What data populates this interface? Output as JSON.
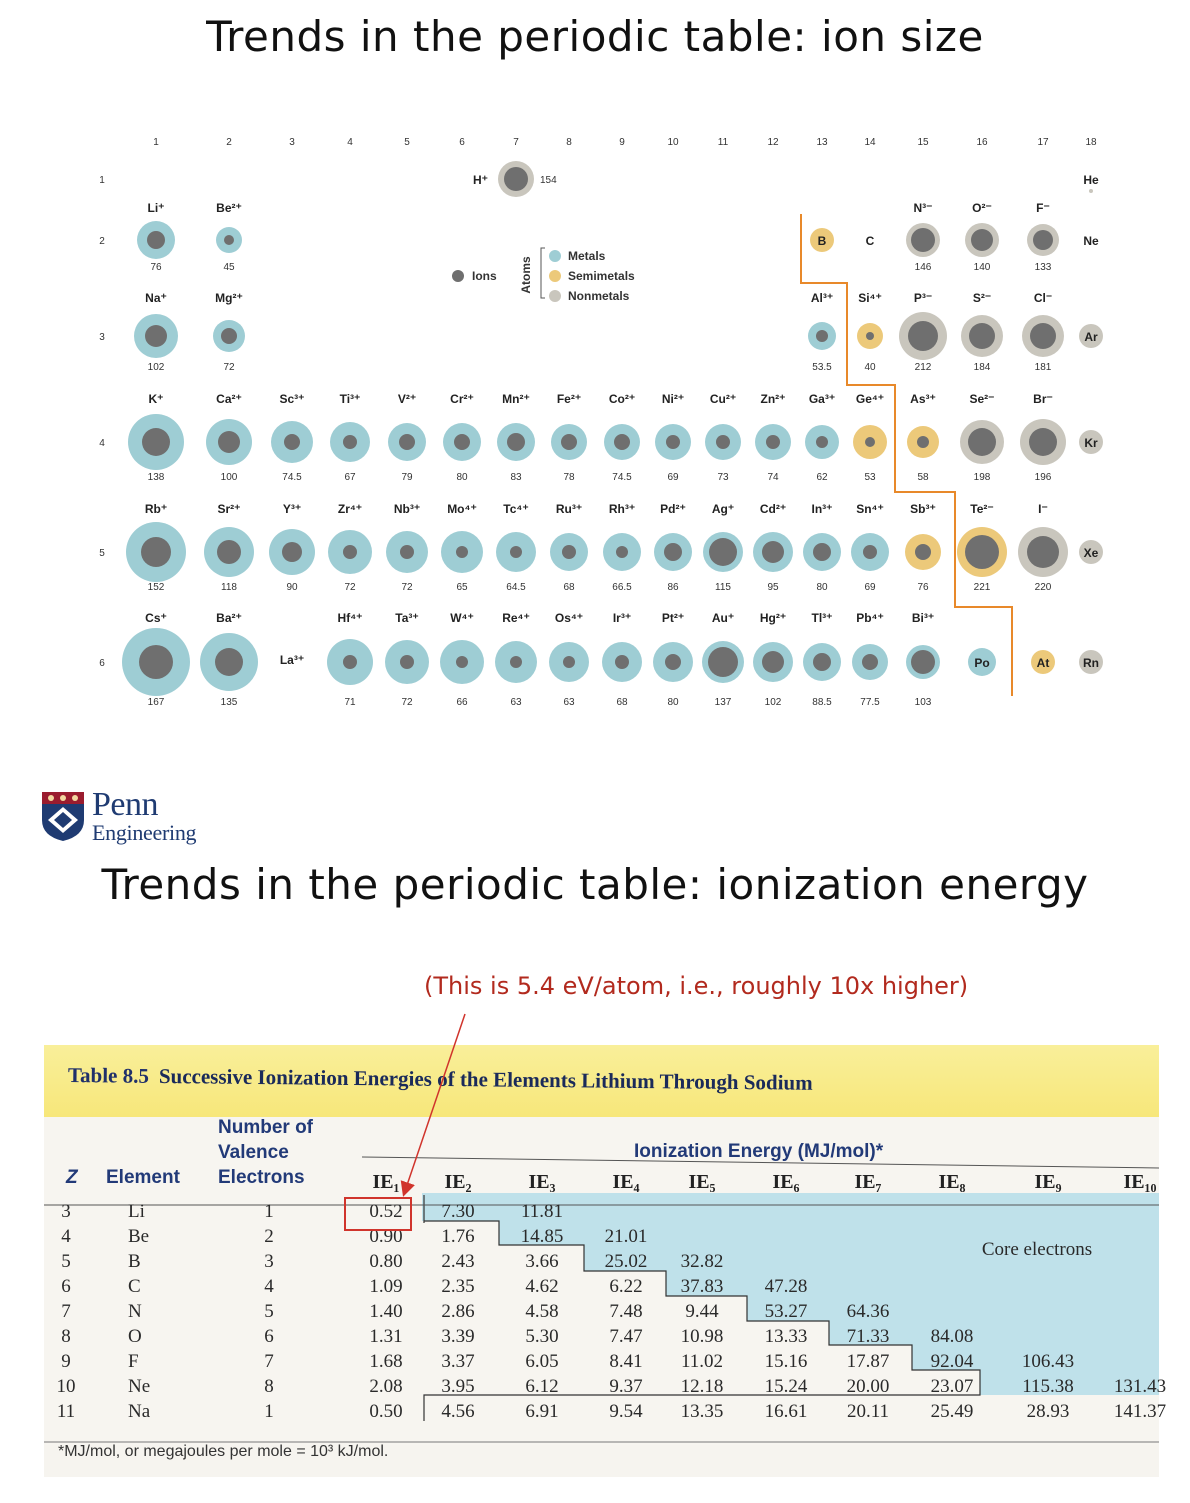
{
  "titles": {
    "ion_size": "Trends in the periodic table: ion size",
    "ionization": "Trends in the periodic table: ionization energy"
  },
  "periodic_table": {
    "groups": [
      "1",
      "2",
      "3",
      "4",
      "5",
      "6",
      "7",
      "8",
      "9",
      "10",
      "11",
      "12",
      "13",
      "14",
      "15",
      "16",
      "17",
      "18"
    ],
    "periods": [
      "1",
      "2",
      "3",
      "4",
      "5",
      "6"
    ],
    "legend": {
      "ions": "Ions",
      "atoms": "Atoms",
      "metals": "Metals",
      "semimetals": "Semimetals",
      "nonmetals": "Nonmetals"
    },
    "colors": {
      "metal": "#9ecdd4",
      "semimetal": "#ecc97a",
      "nonmetal": "#c9c6bd",
      "ion": "#6f6f6f",
      "boundary": "#e8892a"
    },
    "ions": [
      {
        "label": "H⁺",
        "value": "154",
        "group": 7,
        "period": 1,
        "type": "nonmetal",
        "r": 18,
        "ir": 12,
        "lpos": "left"
      },
      {
        "label": "Li⁺",
        "value": "76",
        "group": 1,
        "period": 2,
        "type": "metal",
        "r": 19,
        "ir": 9
      },
      {
        "label": "Be²⁺",
        "value": "45",
        "group": 2,
        "period": 2,
        "type": "metal",
        "r": 13,
        "ir": 5
      },
      {
        "label": "N³⁻",
        "value": "146",
        "group": 15,
        "period": 2,
        "type": "nonmetal",
        "r": 17,
        "ir": 12
      },
      {
        "label": "O²⁻",
        "value": "140",
        "group": 16,
        "period": 2,
        "type": "nonmetal",
        "r": 17,
        "ir": 11
      },
      {
        "label": "F⁻",
        "value": "133",
        "group": 17,
        "period": 2,
        "type": "nonmetal",
        "r": 16,
        "ir": 10
      },
      {
        "label": "Na⁺",
        "value": "102",
        "group": 1,
        "period": 3,
        "type": "metal",
        "r": 22,
        "ir": 11
      },
      {
        "label": "Mg²⁺",
        "value": "72",
        "group": 2,
        "period": 3,
        "type": "metal",
        "r": 16,
        "ir": 8
      },
      {
        "label": "Al³⁺",
        "value": "53.5",
        "group": 13,
        "period": 3,
        "type": "metal",
        "r": 14,
        "ir": 6
      },
      {
        "label": "Si⁴⁺",
        "value": "40",
        "group": 14,
        "period": 3,
        "type": "semimetal",
        "r": 13,
        "ir": 4
      },
      {
        "label": "P³⁻",
        "value": "212",
        "group": 15,
        "period": 3,
        "type": "nonmetal",
        "r": 24,
        "ir": 15
      },
      {
        "label": "S²⁻",
        "value": "184",
        "group": 16,
        "period": 3,
        "type": "nonmetal",
        "r": 21,
        "ir": 13
      },
      {
        "label": "Cl⁻",
        "value": "181",
        "group": 17,
        "period": 3,
        "type": "nonmetal",
        "r": 21,
        "ir": 13
      },
      {
        "label": "K⁺",
        "value": "138",
        "group": 1,
        "period": 4,
        "type": "metal",
        "r": 28,
        "ir": 14
      },
      {
        "label": "Ca²⁺",
        "value": "100",
        "group": 2,
        "period": 4,
        "type": "metal",
        "r": 23,
        "ir": 11
      },
      {
        "label": "Sc³⁺",
        "value": "74.5",
        "group": 3,
        "period": 4,
        "type": "metal",
        "r": 21,
        "ir": 8
      },
      {
        "label": "Ti³⁺",
        "value": "67",
        "group": 4,
        "period": 4,
        "type": "metal",
        "r": 20,
        "ir": 7
      },
      {
        "label": "V²⁺",
        "value": "79",
        "group": 5,
        "period": 4,
        "type": "metal",
        "r": 19,
        "ir": 8
      },
      {
        "label": "Cr²⁺",
        "value": "80",
        "group": 6,
        "period": 4,
        "type": "metal",
        "r": 19,
        "ir": 8
      },
      {
        "label": "Mn²⁺",
        "value": "83",
        "group": 7,
        "period": 4,
        "type": "metal",
        "r": 19,
        "ir": 9
      },
      {
        "label": "Fe²⁺",
        "value": "78",
        "group": 8,
        "period": 4,
        "type": "metal",
        "r": 18,
        "ir": 8
      },
      {
        "label": "Co²⁺",
        "value": "74.5",
        "group": 9,
        "period": 4,
        "type": "metal",
        "r": 18,
        "ir": 8
      },
      {
        "label": "Ni²⁺",
        "value": "69",
        "group": 10,
        "period": 4,
        "type": "metal",
        "r": 18,
        "ir": 7
      },
      {
        "label": "Cu²⁺",
        "value": "73",
        "group": 11,
        "period": 4,
        "type": "metal",
        "r": 18,
        "ir": 7
      },
      {
        "label": "Zn²⁺",
        "value": "74",
        "group": 12,
        "period": 4,
        "type": "metal",
        "r": 18,
        "ir": 7
      },
      {
        "label": "Ga³⁺",
        "value": "62",
        "group": 13,
        "period": 4,
        "type": "metal",
        "r": 17,
        "ir": 6
      },
      {
        "label": "Ge⁴⁺",
        "value": "53",
        "group": 14,
        "period": 4,
        "type": "semimetal",
        "r": 17,
        "ir": 5
      },
      {
        "label": "As³⁺",
        "value": "58",
        "group": 15,
        "period": 4,
        "type": "semimetal",
        "r": 16,
        "ir": 6
      },
      {
        "label": "Se²⁻",
        "value": "198",
        "group": 16,
        "period": 4,
        "type": "nonmetal",
        "r": 22,
        "ir": 14
      },
      {
        "label": "Br⁻",
        "value": "196",
        "group": 17,
        "period": 4,
        "type": "nonmetal",
        "r": 23,
        "ir": 14
      },
      {
        "label": "Rb⁺",
        "value": "152",
        "group": 1,
        "period": 5,
        "type": "metal",
        "r": 30,
        "ir": 15
      },
      {
        "label": "Sr²⁺",
        "value": "118",
        "group": 2,
        "period": 5,
        "type": "metal",
        "r": 25,
        "ir": 12
      },
      {
        "label": "Y³⁺",
        "value": "90",
        "group": 3,
        "period": 5,
        "type": "metal",
        "r": 23,
        "ir": 10
      },
      {
        "label": "Zr⁴⁺",
        "value": "72",
        "group": 4,
        "period": 5,
        "type": "metal",
        "r": 22,
        "ir": 7
      },
      {
        "label": "Nb³⁺",
        "value": "72",
        "group": 5,
        "period": 5,
        "type": "metal",
        "r": 21,
        "ir": 7
      },
      {
        "label": "Mo⁴⁺",
        "value": "65",
        "group": 6,
        "period": 5,
        "type": "metal",
        "r": 21,
        "ir": 6
      },
      {
        "label": "Tc⁴⁺",
        "value": "64.5",
        "group": 7,
        "period": 5,
        "type": "metal",
        "r": 20,
        "ir": 6
      },
      {
        "label": "Ru³⁺",
        "value": "68",
        "group": 8,
        "period": 5,
        "type": "metal",
        "r": 19,
        "ir": 7
      },
      {
        "label": "Rh³⁺",
        "value": "66.5",
        "group": 9,
        "period": 5,
        "type": "metal",
        "r": 19,
        "ir": 6
      },
      {
        "label": "Pd²⁺",
        "value": "86",
        "group": 10,
        "period": 5,
        "type": "metal",
        "r": 19,
        "ir": 9
      },
      {
        "label": "Ag⁺",
        "value": "115",
        "group": 11,
        "period": 5,
        "type": "metal",
        "r": 20,
        "ir": 14
      },
      {
        "label": "Cd²⁺",
        "value": "95",
        "group": 12,
        "period": 5,
        "type": "metal",
        "r": 20,
        "ir": 11
      },
      {
        "label": "In³⁺",
        "value": "80",
        "group": 13,
        "period": 5,
        "type": "metal",
        "r": 19,
        "ir": 9
      },
      {
        "label": "Sn⁴⁺",
        "value": "69",
        "group": 14,
        "period": 5,
        "type": "metal",
        "r": 19,
        "ir": 7
      },
      {
        "label": "Sb³⁺",
        "value": "76",
        "group": 15,
        "period": 5,
        "type": "semimetal",
        "r": 18,
        "ir": 8
      },
      {
        "label": "Te²⁻",
        "value": "221",
        "group": 16,
        "period": 5,
        "type": "semimetal",
        "r": 25,
        "ir": 17
      },
      {
        "label": "I⁻",
        "value": "220",
        "group": 17,
        "period": 5,
        "type": "nonmetal",
        "r": 25,
        "ir": 16
      },
      {
        "label": "Cs⁺",
        "value": "167",
        "group": 1,
        "period": 6,
        "type": "metal",
        "r": 34,
        "ir": 17
      },
      {
        "label": "Ba²⁺",
        "value": "135",
        "group": 2,
        "period": 6,
        "type": "metal",
        "r": 29,
        "ir": 14
      },
      {
        "label": "Hf⁴⁺",
        "value": "71",
        "group": 4,
        "period": 6,
        "type": "metal",
        "r": 23,
        "ir": 7
      },
      {
        "label": "Ta³⁺",
        "value": "72",
        "group": 5,
        "period": 6,
        "type": "metal",
        "r": 22,
        "ir": 7
      },
      {
        "label": "W⁴⁺",
        "value": "66",
        "group": 6,
        "period": 6,
        "type": "metal",
        "r": 22,
        "ir": 6
      },
      {
        "label": "Re⁴⁺",
        "value": "63",
        "group": 7,
        "period": 6,
        "type": "metal",
        "r": 21,
        "ir": 6
      },
      {
        "label": "Os⁴⁺",
        "value": "63",
        "group": 8,
        "period": 6,
        "type": "metal",
        "r": 20,
        "ir": 6
      },
      {
        "label": "Ir³⁺",
        "value": "68",
        "group": 9,
        "period": 6,
        "type": "metal",
        "r": 20,
        "ir": 7
      },
      {
        "label": "Pt²⁺",
        "value": "80",
        "group": 10,
        "period": 6,
        "type": "metal",
        "r": 20,
        "ir": 8
      },
      {
        "label": "Au⁺",
        "value": "137",
        "group": 11,
        "period": 6,
        "type": "metal",
        "r": 21,
        "ir": 15
      },
      {
        "label": "Hg²⁺",
        "value": "102",
        "group": 12,
        "period": 6,
        "type": "metal",
        "r": 20,
        "ir": 11
      },
      {
        "label": "Tl³⁺",
        "value": "88.5",
        "group": 13,
        "period": 6,
        "type": "metal",
        "r": 19,
        "ir": 9
      },
      {
        "label": "Pb⁴⁺",
        "value": "77.5",
        "group": 14,
        "period": 6,
        "type": "metal",
        "r": 18,
        "ir": 8
      },
      {
        "label": "Bi³⁺",
        "value": "103",
        "group": 15,
        "period": 6,
        "type": "metal",
        "r": 17,
        "ir": 12
      }
    ],
    "plain_cells": [
      {
        "label": "He",
        "group": 18,
        "period": 1,
        "type": "text"
      },
      {
        "label": "B",
        "group": 13,
        "period": 2,
        "type": "semimetal"
      },
      {
        "label": "C",
        "group": 14,
        "period": 2,
        "type": "text"
      },
      {
        "label": "Ne",
        "group": 18,
        "period": 2,
        "type": "text"
      },
      {
        "label": "Ar",
        "group": 18,
        "period": 3,
        "type": "nonmetal"
      },
      {
        "label": "Kr",
        "group": 18,
        "period": 4,
        "type": "nonmetal"
      },
      {
        "label": "Xe",
        "group": 18,
        "period": 5,
        "type": "nonmetal"
      },
      {
        "label": "Po",
        "group": 16,
        "period": 6,
        "type": "metal"
      },
      {
        "label": "At",
        "group": 17,
        "period": 6,
        "type": "semimetal"
      },
      {
        "label": "Rn",
        "group": 18,
        "period": 6,
        "type": "nonmetal"
      },
      {
        "label": "La³⁺",
        "group": 3,
        "period": 6,
        "type": "text"
      }
    ]
  },
  "logo": {
    "name": "Penn",
    "subtitle": "Engineering"
  },
  "annotation": "(This is 5.4 eV/atom, i.e., roughly 10x higher)",
  "table": {
    "number": "Table 8.5",
    "title": "Successive Ionization Energies of the Elements Lithium Through Sodium",
    "col_z": "Z",
    "col_element": "Element",
    "col_valence": [
      "Number of",
      "Valence",
      "Electrons"
    ],
    "ie_header": "Ionization Energy (MJ/mol)*",
    "ie_columns": [
      "IE₁",
      "IE₂",
      "IE₃",
      "IE₄",
      "IE₅",
      "IE₆",
      "IE₇",
      "IE₈",
      "IE₉",
      "IE₁₀"
    ],
    "core_label": "Core electrons",
    "rows": [
      {
        "z": "3",
        "el": "Li",
        "val": "1",
        "ie": [
          "0.52",
          "7.30",
          "11.81"
        ]
      },
      {
        "z": "4",
        "el": "Be",
        "val": "2",
        "ie": [
          "0.90",
          "1.76",
          "14.85",
          "21.01"
        ]
      },
      {
        "z": "5",
        "el": "B",
        "val": "3",
        "ie": [
          "0.80",
          "2.43",
          "3.66",
          "25.02",
          "32.82"
        ]
      },
      {
        "z": "6",
        "el": "C",
        "val": "4",
        "ie": [
          "1.09",
          "2.35",
          "4.62",
          "6.22",
          "37.83",
          "47.28"
        ]
      },
      {
        "z": "7",
        "el": "N",
        "val": "5",
        "ie": [
          "1.40",
          "2.86",
          "4.58",
          "7.48",
          "9.44",
          "53.27",
          "64.36"
        ]
      },
      {
        "z": "8",
        "el": "O",
        "val": "6",
        "ie": [
          "1.31",
          "3.39",
          "5.30",
          "7.47",
          "10.98",
          "13.33",
          "71.33",
          "84.08"
        ]
      },
      {
        "z": "9",
        "el": "F",
        "val": "7",
        "ie": [
          "1.68",
          "3.37",
          "6.05",
          "8.41",
          "11.02",
          "15.16",
          "17.87",
          "92.04",
          "106.43"
        ]
      },
      {
        "z": "10",
        "el": "Ne",
        "val": "8",
        "ie": [
          "2.08",
          "3.95",
          "6.12",
          "9.37",
          "12.18",
          "15.24",
          "20.00",
          "23.07",
          "115.38",
          "131.43"
        ]
      },
      {
        "z": "11",
        "el": "Na",
        "val": "1",
        "ie": [
          "0.50",
          "4.56",
          "6.91",
          "9.54",
          "13.35",
          "16.61",
          "20.11",
          "25.49",
          "28.93",
          "141.37"
        ]
      }
    ],
    "footnote": "*MJ/mol, or megajoules per mole = 10³ kJ/mol."
  }
}
